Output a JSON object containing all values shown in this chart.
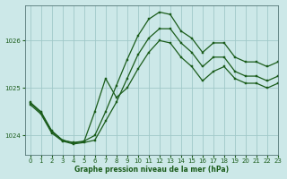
{
  "title": "Graphe pression niveau de la mer (hPa)",
  "bg_color": "#cce8e8",
  "grid_color": "#a0c8c8",
  "line_color": "#1a5c1a",
  "xlim": [
    -0.5,
    23
  ],
  "ylim": [
    1023.6,
    1026.75
  ],
  "yticks": [
    1024,
    1025,
    1026
  ],
  "xticks": [
    0,
    1,
    2,
    3,
    4,
    5,
    6,
    7,
    8,
    9,
    10,
    11,
    12,
    13,
    14,
    15,
    16,
    17,
    18,
    19,
    20,
    21,
    22,
    23
  ],
  "line1_x": [
    0,
    1,
    2,
    3,
    4,
    5,
    6,
    7,
    8,
    9,
    10,
    11,
    12,
    13,
    14,
    15,
    16,
    17,
    18,
    19,
    20,
    21,
    22,
    23
  ],
  "line1_y": [
    1024.7,
    1024.5,
    1024.1,
    1023.9,
    1023.85,
    1023.88,
    1024.0,
    1024.5,
    1025.05,
    1025.6,
    1026.1,
    1026.45,
    1026.6,
    1026.55,
    1026.2,
    1026.05,
    1025.75,
    1025.95,
    1025.95,
    1025.65,
    1025.55,
    1025.55,
    1025.45,
    1025.55
  ],
  "line2_x": [
    0,
    1,
    2,
    3,
    4,
    5,
    6,
    7,
    8,
    9,
    10,
    11,
    12,
    13,
    14,
    15,
    16,
    17,
    18,
    19,
    20,
    21,
    22,
    23
  ],
  "line2_y": [
    1024.65,
    1024.45,
    1024.05,
    1023.88,
    1023.82,
    1023.85,
    1023.9,
    1024.3,
    1024.7,
    1025.2,
    1025.7,
    1026.05,
    1026.25,
    1026.25,
    1025.95,
    1025.75,
    1025.45,
    1025.65,
    1025.65,
    1025.35,
    1025.25,
    1025.25,
    1025.15,
    1025.25
  ],
  "line3_x": [
    0,
    1,
    2,
    3,
    4,
    5,
    6,
    7,
    8,
    9,
    10,
    11,
    12,
    13,
    14,
    15,
    16,
    17,
    18,
    19,
    20,
    21,
    22,
    23
  ],
  "line3_y": [
    1024.68,
    1024.48,
    1024.08,
    1023.9,
    1023.84,
    1023.87,
    1024.5,
    1025.2,
    1024.8,
    1025.0,
    1025.4,
    1025.75,
    1026.0,
    1025.95,
    1025.65,
    1025.45,
    1025.15,
    1025.35,
    1025.45,
    1025.2,
    1025.1,
    1025.1,
    1025.0,
    1025.1
  ]
}
